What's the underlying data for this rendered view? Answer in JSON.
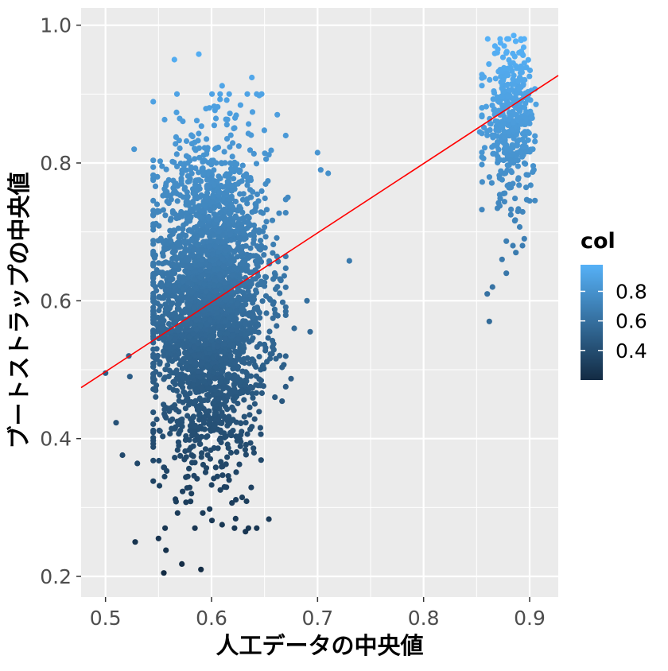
{
  "chart_data": {
    "type": "scatter",
    "title": "",
    "xlabel": "人工データの中央値",
    "ylabel": "ブートストラップの中央値",
    "xlim": [
      0.477,
      0.927
    ],
    "ylim": [
      0.17,
      1.025
    ],
    "x_ticks": [
      0.5,
      0.6,
      0.7,
      0.8,
      0.9
    ],
    "x_tick_labels": [
      "0.5",
      "0.6",
      "0.7",
      "0.8",
      "0.9"
    ],
    "y_ticks": [
      0.2,
      0.4,
      0.6,
      0.8,
      1.0
    ],
    "y_tick_labels": [
      "0.2",
      "0.4",
      "0.6",
      "0.8",
      "1.0"
    ],
    "grid": true,
    "background": "#ebebeb",
    "grid_color": "#ffffff",
    "trend_line": {
      "color": "#ff0000",
      "x": [
        0.477,
        0.927
      ],
      "y": [
        0.474,
        0.927
      ]
    },
    "color_scale": {
      "name": "col",
      "low_color": "#132b43",
      "high_color": "#56b1f7",
      "range": [
        0.2,
        0.98
      ],
      "breaks": [
        0.4,
        0.6,
        0.8
      ],
      "break_labels": [
        "0.4",
        "0.6",
        "0.8"
      ]
    },
    "legend_position": "right",
    "clusters": [
      {
        "x_mean": 0.598,
        "x_sd": 0.027,
        "y_mean": 0.6,
        "y_sd": 0.11,
        "count": 3000
      },
      {
        "x_mean": 0.882,
        "x_sd": 0.011,
        "y_mean": 0.86,
        "y_sd": 0.055,
        "count": 400
      }
    ],
    "points": [
      [
        0.5,
        0.495
      ],
      [
        0.51,
        0.423
      ],
      [
        0.516,
        0.376
      ],
      [
        0.522,
        0.52
      ],
      [
        0.523,
        0.49
      ],
      [
        0.528,
        0.25
      ],
      [
        0.527,
        0.82
      ],
      [
        0.53,
        0.364
      ],
      [
        0.545,
        0.889
      ],
      [
        0.555,
        0.205
      ],
      [
        0.55,
        0.255
      ],
      [
        0.557,
        0.238
      ],
      [
        0.565,
        0.95
      ],
      [
        0.588,
        0.958
      ],
      [
        0.59,
        0.21
      ],
      [
        0.61,
        0.912
      ],
      [
        0.632,
        0.265
      ],
      [
        0.638,
        0.924
      ],
      [
        0.645,
        0.898
      ],
      [
        0.662,
        0.87
      ],
      [
        0.675,
        0.487
      ],
      [
        0.7,
        0.815
      ],
      [
        0.71,
        0.785
      ],
      [
        0.703,
        0.79
      ],
      [
        0.73,
        0.658
      ],
      [
        0.693,
        0.555
      ],
      [
        0.69,
        0.6
      ],
      [
        0.678,
        0.56
      ],
      [
        0.66,
        0.635
      ],
      [
        0.672,
        0.75
      ],
      [
        0.572,
        0.218
      ],
      [
        0.568,
        0.292
      ],
      [
        0.598,
        0.88
      ],
      [
        0.61,
        0.275
      ],
      [
        0.64,
        0.7
      ],
      [
        0.862,
        0.57
      ],
      [
        0.853,
        0.845
      ],
      [
        0.86,
        0.84
      ],
      [
        0.875,
        0.92
      ],
      [
        0.878,
        0.64
      ],
      [
        0.885,
        0.985
      ],
      [
        0.892,
        0.978
      ],
      [
        0.895,
        0.945
      ],
      [
        0.895,
        0.69
      ],
      [
        0.9,
        0.745
      ],
      [
        0.906,
        0.885
      ],
      [
        0.87,
        0.965
      ],
      [
        0.874,
        0.66
      ],
      [
        0.86,
        0.61
      ],
      [
        0.903,
        0.82
      ],
      [
        0.904,
        0.79
      ],
      [
        0.889,
        0.73
      ],
      [
        0.887,
        0.67
      ],
      [
        0.865,
        0.62
      ],
      [
        0.89,
        0.96
      ]
    ]
  }
}
